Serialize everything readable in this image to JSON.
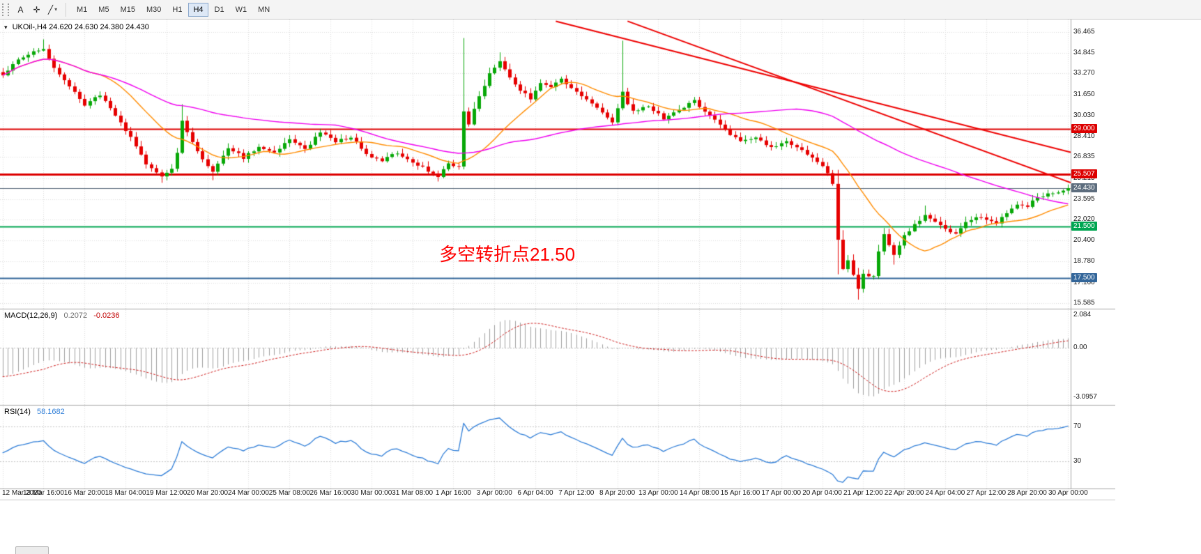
{
  "toolbar": {
    "tools": [
      {
        "name": "text-tool",
        "label": "A"
      },
      {
        "name": "crosshair-tool",
        "label": "✛"
      },
      {
        "name": "line-tools-dropdown",
        "label": "╱",
        "caret": "▾"
      }
    ],
    "timeframes": [
      "M1",
      "M5",
      "M15",
      "M30",
      "H1",
      "H4",
      "D1",
      "W1",
      "MN"
    ],
    "selected_timeframe": "H4"
  },
  "chart": {
    "dropdown_icon": "▾",
    "title": "UKOil-,H4 24.620 24.630 24.380 24.430"
  },
  "chart_data": {
    "type": "candlestick",
    "title": "UKOil-,H4",
    "ohlc_display": {
      "open": "24.620",
      "high": "24.630",
      "low": "24.380",
      "close": "24.430"
    },
    "current_price": 24.43,
    "bars_total": 209,
    "bars_per_gridline": 8,
    "ylim": [
      15.15,
      37.43
    ],
    "grid": true,
    "candle_colors": {
      "up": "#07a807",
      "down": "#e60000"
    },
    "x_axis_labels": [
      "12 Mar 2020",
      "13 Mar 16:00",
      "16 Mar 20:00",
      "18 Mar 04:00",
      "19 Mar 12:00",
      "20 Mar 20:00",
      "24 Mar 00:00",
      "25 Mar 08:00",
      "26 Mar 16:00",
      "30 Mar 00:00",
      "31 Mar 08:00",
      "1 Apr 16:00",
      "3 Apr 00:00",
      "6 Apr 04:00",
      "7 Apr 12:00",
      "8 Apr 20:00",
      "13 Apr 00:00",
      "14 Apr 08:00",
      "15 Apr 16:00",
      "17 Apr 00:00",
      "20 Apr 04:00",
      "21 Apr 12:00",
      "22 Apr 20:00",
      "24 Apr 04:00",
      "27 Apr 12:00",
      "28 Apr 20:00",
      "30 Apr 00:00"
    ],
    "y_axis_labels": [
      "36.465",
      "34.845",
      "33.270",
      "31.650",
      "30.030",
      "28.410",
      "26.835",
      "25.215",
      "23.595",
      "22.020",
      "20.400",
      "18.780",
      "17.160",
      "15.585"
    ],
    "close_path_anchors": [
      [
        0,
        33.2
      ],
      [
        4,
        34.6
      ],
      [
        8,
        35.2
      ],
      [
        10,
        33.8
      ],
      [
        13,
        32.2
      ],
      [
        16,
        30.9
      ],
      [
        19,
        31.6
      ],
      [
        22,
        30
      ],
      [
        25,
        28.3
      ],
      [
        28,
        26.3
      ],
      [
        31,
        25.3
      ],
      [
        33,
        26
      ],
      [
        34,
        27.2
      ],
      [
        35,
        29.6
      ],
      [
        36,
        28.7
      ],
      [
        38,
        27.2
      ],
      [
        41,
        25.6
      ],
      [
        44,
        27.5
      ],
      [
        47,
        26.8
      ],
      [
        50,
        27.6
      ],
      [
        53,
        27.2
      ],
      [
        56,
        28.2
      ],
      [
        59,
        27.4
      ],
      [
        62,
        28.8
      ],
      [
        65,
        28
      ],
      [
        68,
        28.4
      ],
      [
        71,
        27
      ],
      [
        74,
        26.6
      ],
      [
        77,
        27.2
      ],
      [
        80,
        26.4
      ],
      [
        83,
        25.8
      ],
      [
        85,
        25.4
      ],
      [
        87,
        26.3
      ],
      [
        89,
        26.2
      ],
      [
        90,
        30.3
      ],
      [
        91,
        29.4
      ],
      [
        93,
        31.5
      ],
      [
        95,
        33.3
      ],
      [
        97,
        34.3
      ],
      [
        99,
        33
      ],
      [
        101,
        32
      ],
      [
        103,
        31.3
      ],
      [
        105,
        32.6
      ],
      [
        107,
        32.3
      ],
      [
        109,
        32.8
      ],
      [
        112,
        31.8
      ],
      [
        115,
        31
      ],
      [
        117,
        30.2
      ],
      [
        119,
        29.6
      ],
      [
        121,
        31.8
      ],
      [
        122,
        31
      ],
      [
        123,
        30.3
      ],
      [
        126,
        30.8
      ],
      [
        129,
        29.8
      ],
      [
        132,
        30.4
      ],
      [
        135,
        31.2
      ],
      [
        138,
        30
      ],
      [
        141,
        28.9
      ],
      [
        144,
        28
      ],
      [
        147,
        28.4
      ],
      [
        150,
        27.5
      ],
      [
        153,
        28
      ],
      [
        156,
        27.3
      ],
      [
        159,
        26.5
      ],
      [
        161,
        25.6
      ],
      [
        162,
        24.7
      ],
      [
        163,
        20.5
      ],
      [
        164,
        18.3
      ],
      [
        165,
        18.8
      ],
      [
        167,
        16.6
      ],
      [
        168,
        17.8
      ],
      [
        170,
        17.6
      ],
      [
        171,
        19.5
      ],
      [
        172,
        21
      ],
      [
        174,
        19.2
      ],
      [
        176,
        20.8
      ],
      [
        178,
        21.6
      ],
      [
        180,
        22.3
      ],
      [
        182,
        21.9
      ],
      [
        184,
        21.3
      ],
      [
        186,
        21
      ],
      [
        188,
        21.8
      ],
      [
        190,
        22.3
      ],
      [
        192,
        22
      ],
      [
        194,
        21.7
      ],
      [
        196,
        22.6
      ],
      [
        198,
        23.2
      ],
      [
        200,
        23
      ],
      [
        202,
        23.8
      ],
      [
        205,
        24.1
      ],
      [
        208,
        24.43
      ]
    ],
    "wick_extremes": [
      {
        "bar": 8,
        "high": 35.9
      },
      {
        "bar": 31,
        "low": 24.85
      },
      {
        "bar": 35,
        "high": 30.9
      },
      {
        "bar": 41,
        "low": 25.05
      },
      {
        "bar": 85,
        "low": 24.95
      },
      {
        "bar": 90,
        "high": 36
      },
      {
        "bar": 97,
        "high": 34.9
      },
      {
        "bar": 121,
        "high": 35.8
      },
      {
        "bar": 163,
        "low": 17.8
      },
      {
        "bar": 167,
        "low": 15.85
      },
      {
        "bar": 174,
        "low": 18.55
      },
      {
        "bar": 180,
        "high": 23.1
      }
    ],
    "moving_averages": [
      {
        "name": "ma-fast",
        "period": 18,
        "color": "#ff8c00"
      },
      {
        "name": "ma-slow",
        "period": 66,
        "color": "#f000f0"
      }
    ],
    "horizontal_lines": [
      {
        "price": 29.0,
        "badge": "29.000",
        "color": "#dd0000",
        "width": 2
      },
      {
        "price": 25.507,
        "badge": "25.507",
        "color": "#dd0000",
        "width": 3
      },
      {
        "price": 24.43,
        "badge": "24.430",
        "color": "#5d6d7e",
        "width": 1
      },
      {
        "price": 21.5,
        "badge": "21.500",
        "color": "#00a651",
        "width": 2
      },
      {
        "price": 17.5,
        "badge": "17.500",
        "color": "#33669a",
        "width": 2
      }
    ],
    "trend_lines": [
      {
        "color": "#ee0000",
        "width": 2,
        "from": {
          "bar": 108,
          "price": 37.3
        },
        "to": {
          "bar": 208.5,
          "price": 27.2
        }
      },
      {
        "color": "#ee0000",
        "width": 2,
        "from": {
          "bar": 122,
          "price": 37.3
        },
        "to": {
          "bar": 208.5,
          "price": 24.87
        }
      }
    ],
    "annotation": {
      "text": "多空转折点21.50",
      "color": "#ff0000"
    },
    "indicators": {
      "macd": {
        "title": "MACD(12,26,9)",
        "params": [
          12,
          26,
          9
        ],
        "value_main": "0.2072",
        "value_signal": "-0.0236",
        "ylim": [
          -3.57,
          2.47
        ],
        "scale_labels": [
          {
            "text": "2.084",
            "value": 2.084
          },
          {
            "text": "0.00",
            "value": 0
          },
          {
            "text": "-3.0957",
            "value": -3.0957
          }
        ],
        "histogram_color": "#a0a0a0",
        "signal_color": "#d02020"
      },
      "rsi": {
        "title": "RSI(14)",
        "period": 14,
        "value": "58.1682",
        "ylim": [
          -1.2,
          94.8
        ],
        "levels": [
          {
            "text": "70",
            "value": 70
          },
          {
            "text": "30",
            "value": 30
          }
        ],
        "line_color": "#2f7ed8"
      }
    }
  }
}
